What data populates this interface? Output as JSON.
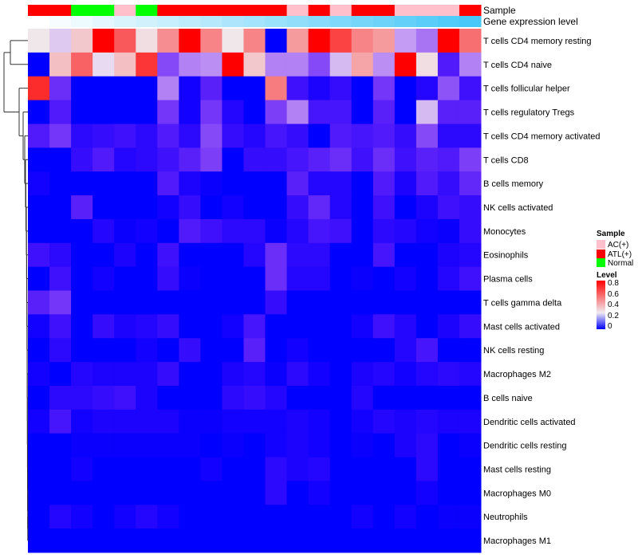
{
  "chart_data": {
    "type": "heatmap",
    "annotations": {
      "sample_title": "Sample",
      "gene_title": "Gene expression level",
      "samples": [
        "ATL(+)",
        "ATL(+)",
        "Normal",
        "Normal",
        "AC(+)",
        "Normal",
        "ATL(+)",
        "ATL(+)",
        "ATL(+)",
        "ATL(+)",
        "ATL(+)",
        "ATL(+)",
        "AC(+)",
        "ATL(+)",
        "AC(+)",
        "ATL(+)",
        "ATL(+)",
        "AC(+)",
        "AC(+)",
        "AC(+)",
        "ATL(+)"
      ],
      "gene_expression_rank": [
        0,
        1,
        2,
        3,
        4,
        5,
        6,
        7,
        8,
        9,
        10,
        11,
        12,
        13,
        14,
        15,
        16,
        17,
        18,
        19,
        20
      ]
    },
    "colors": {
      "AC(+)": "#ffc0cb",
      "ATL(+)": "#ff0000",
      "Normal": "#00ff00",
      "low": "#0000ff",
      "mid": "#f0ebf0",
      "high": "#ff0000",
      "gene_low": "#ffffff",
      "gene_high": "#48c8f8"
    },
    "rows": [
      "T cells CD4 memory resting",
      "T cells CD4 naive",
      "T cells follicular helper",
      "T cells regulatory  Tregs",
      "T cells CD4 memory activated",
      "T cells CD8",
      "B cells memory",
      "NK cells activated",
      "Monocytes",
      "Eosinophils",
      "Plasma cells",
      "T cells gamma delta",
      "Mast cells activated",
      "NK cells resting",
      "Macrophages M2",
      "B cells naive",
      "Dendritic cells activated",
      "Dendritic cells resting",
      "Mast cells resting",
      "Macrophages M0",
      "Neutrophils",
      "Macrophages M1"
    ],
    "values": [
      [
        0.28,
        0.25,
        0.35,
        0.8,
        0.6,
        0.3,
        0.48,
        0.8,
        0.5,
        0.28,
        0.5,
        0,
        0.45,
        0.8,
        0.65,
        0.5,
        0.45,
        0.22,
        0.19,
        0.8,
        0.55
      ],
      [
        0,
        0.37,
        0.58,
        0.26,
        0.37,
        0.68,
        0.15,
        0.2,
        0.21,
        0.8,
        0.35,
        0.2,
        0.2,
        0.15,
        0.24,
        0.43,
        0.21,
        0.8,
        0.3,
        0.09,
        0.2
      ],
      [
        0.7,
        0.12,
        0,
        0,
        0,
        0,
        0.2,
        0.02,
        0.1,
        0,
        0,
        0.52,
        0.07,
        0.03,
        0.06,
        0,
        0.13,
        0,
        0.04,
        0.16,
        0.07
      ],
      [
        0,
        0.09,
        0,
        0,
        0,
        0,
        0.13,
        0.02,
        0.13,
        0.04,
        0,
        0.14,
        0.2,
        0.08,
        0.08,
        0,
        0.1,
        0,
        0.24,
        0.1,
        0.1
      ],
      [
        0.09,
        0.13,
        0.05,
        0.06,
        0.07,
        0.05,
        0.09,
        0.05,
        0.15,
        0.06,
        0.04,
        0.08,
        0.06,
        0,
        0.09,
        0.08,
        0.09,
        0.06,
        0.15,
        0.05,
        0.05
      ],
      [
        0,
        0,
        0.06,
        0.09,
        0.04,
        0.05,
        0.07,
        0.1,
        0.14,
        0,
        0.06,
        0.06,
        0.08,
        0.1,
        0.12,
        0.07,
        0.12,
        0.07,
        0.1,
        0.09,
        0.14
      ],
      [
        0.02,
        0,
        0,
        0,
        0,
        0,
        0.09,
        0.03,
        0.01,
        0,
        0,
        0,
        0.1,
        0.04,
        0.04,
        0,
        0.09,
        0.03,
        0.09,
        0.06,
        0.11
      ],
      [
        0,
        0,
        0.1,
        0,
        0,
        0,
        0.02,
        0.06,
        0,
        0.02,
        0,
        0,
        0.06,
        0.11,
        0.04,
        0,
        0.07,
        0,
        0.03,
        0.07,
        0.06
      ],
      [
        0,
        0,
        0,
        0.04,
        0.01,
        0.02,
        0,
        0.09,
        0.07,
        0.05,
        0.05,
        0.01,
        0.04,
        0.08,
        0.07,
        0,
        0.05,
        0.04,
        0.02,
        0.01,
        0.06
      ],
      [
        0.07,
        0.05,
        0,
        0,
        0.03,
        0,
        0.07,
        0,
        0,
        0,
        0.04,
        0.12,
        0.05,
        0.05,
        0,
        0,
        0.08,
        0,
        0,
        0.03,
        0.04
      ],
      [
        0,
        0.07,
        0,
        0.02,
        0,
        0,
        0.06,
        0.01,
        0,
        0,
        0,
        0.12,
        0.04,
        0.04,
        0,
        0.01,
        0,
        0.02,
        0,
        0.04,
        0.07
      ],
      [
        0.1,
        0.13,
        0,
        0,
        0,
        0,
        0,
        0,
        0,
        0,
        0,
        0.06,
        0,
        0,
        0,
        0,
        0,
        0,
        0,
        0,
        0
      ],
      [
        0.02,
        0.07,
        0,
        0.06,
        0.03,
        0.04,
        0.06,
        0,
        0,
        0.02,
        0.08,
        0,
        0,
        0,
        0,
        0.02,
        0.07,
        0.04,
        0,
        0.03,
        0.06
      ],
      [
        0,
        0.05,
        0,
        0,
        0,
        0.02,
        0,
        0.06,
        0,
        0,
        0.1,
        0,
        0.02,
        0,
        0,
        0,
        0,
        0.04,
        0.08,
        0,
        0
      ],
      [
        0.02,
        0,
        0.04,
        0.03,
        0.03,
        0.03,
        0.06,
        0,
        0,
        0.03,
        0.04,
        0.01,
        0.05,
        0.02,
        0,
        0.03,
        0.04,
        0.02,
        0.04,
        0.05,
        0.04
      ],
      [
        0,
        0.05,
        0.05,
        0.06,
        0.07,
        0.03,
        0,
        0,
        0,
        0.05,
        0.06,
        0.04,
        0,
        0,
        0,
        0.04,
        0,
        0,
        0,
        0,
        0
      ],
      [
        0.02,
        0.08,
        0.02,
        0.03,
        0.03,
        0.03,
        0.03,
        0.01,
        0.01,
        0.02,
        0.02,
        0.02,
        0.03,
        0.02,
        0,
        0.02,
        0.04,
        0.03,
        0.04,
        0.03,
        0.03
      ],
      [
        0,
        0,
        0.01,
        0.01,
        0.01,
        0.01,
        0.01,
        0.01,
        0,
        0.01,
        0,
        0.02,
        0.03,
        0.02,
        0,
        0.01,
        0,
        0.03,
        0.05,
        0,
        0.01
      ],
      [
        0,
        0,
        0.02,
        0,
        0,
        0,
        0,
        0,
        0.02,
        0,
        0,
        0.05,
        0.03,
        0.04,
        0,
        0,
        0,
        0,
        0.05,
        0,
        0
      ],
      [
        0,
        0,
        0,
        0,
        0,
        0,
        0,
        0,
        0,
        0,
        0,
        0.05,
        0,
        0.02,
        0,
        0,
        0,
        0,
        0.02,
        0,
        0
      ],
      [
        0,
        0.04,
        0.02,
        0,
        0.02,
        0.04,
        0.02,
        0,
        0,
        0,
        0,
        0,
        0,
        0,
        0,
        0.02,
        0,
        0.02,
        0,
        0.01,
        0.01
      ],
      [
        0,
        0,
        0,
        0,
        0,
        0,
        0,
        0,
        0,
        0,
        0,
        0,
        0,
        0,
        0,
        0,
        0,
        0,
        0,
        0,
        0
      ]
    ],
    "value_range": [
      0,
      0.8
    ],
    "legend": {
      "sample_title": "Sample",
      "sample_items": [
        "AC(+)",
        "ATL(+)",
        "Normal"
      ],
      "level_title": "Level",
      "level_ticks": [
        "0.8",
        "0.6",
        "0.4",
        "0.2",
        "0"
      ]
    }
  }
}
